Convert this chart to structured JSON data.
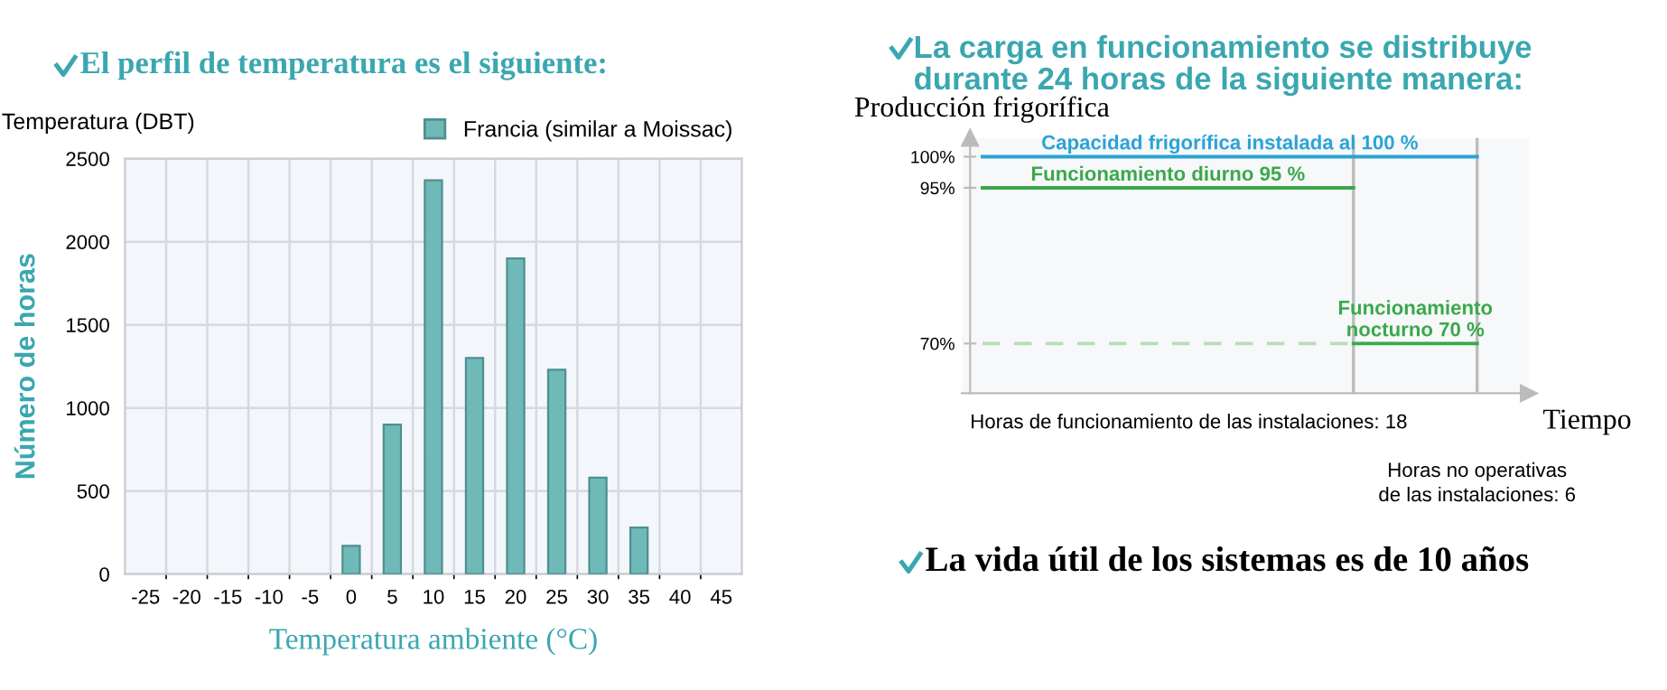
{
  "chart_data": [
    {
      "type": "bar",
      "title": "El perfil de temperatura es el siguiente:",
      "xlabel": "Temperatura ambiente (°C)",
      "ylabel": "Número de horas",
      "annotations": [
        "Temperatura (DBT)"
      ],
      "categories": [
        "-25",
        "-20",
        "-15",
        "-10",
        "-5",
        "0",
        "5",
        "10",
        "15",
        "20",
        "25",
        "30",
        "35",
        "40",
        "45"
      ],
      "series": [
        {
          "name": "Francia (similar a Moissac)",
          "color": "#70b9b9",
          "values": [
            null,
            null,
            null,
            null,
            null,
            170,
            900,
            2370,
            1300,
            1900,
            1230,
            580,
            280,
            null,
            null
          ]
        }
      ],
      "ylim": [
        0,
        2500
      ],
      "yticks": [
        0,
        500,
        1000,
        1500,
        2000,
        2500
      ],
      "grid": true,
      "legend": "top right"
    },
    {
      "type": "line",
      "title": "La carga en funcionamiento se distribuye\ndurante 24 horas de la siguiente manera:",
      "xlabel": "Tiempo",
      "ylabel": "Producción frigorífica",
      "annotations": [
        "Horas de funcionamiento de las instalaciones: 18",
        "Horas no operativas\nde las instalaciones: 6",
        "La vida útil de los sistemas es de 10 años"
      ],
      "categories": [
        null,
        null,
        null,
        null,
        null,
        null,
        null,
        null,
        null,
        null,
        null,
        null,
        null,
        null,
        null,
        null,
        null,
        null,
        null,
        null,
        null,
        null,
        null,
        null,
        null
      ],
      "series": [
        {
          "name": "Capacidad frigorífica instalada al 100 %",
          "color": "#2aa3d6",
          "values": [
            100,
            100,
            100,
            100,
            100,
            100,
            100,
            100,
            100,
            100,
            100,
            100,
            100,
            100,
            100,
            100,
            100,
            100,
            100,
            100,
            100,
            100,
            100,
            100,
            100
          ]
        },
        {
          "name": "Funcionamiento diurno 95 %",
          "color": "#3aa84a",
          "values": [
            95,
            95,
            95,
            95,
            95,
            95,
            95,
            95,
            95,
            95,
            95,
            95,
            95,
            95,
            95,
            95,
            95,
            95,
            95,
            null,
            null,
            null,
            null,
            null,
            null
          ]
        },
        {
          "name": "Funcionamiento\nnocturno 70 %",
          "color": "#3aa84a",
          "values": [
            null,
            null,
            null,
            null,
            null,
            null,
            null,
            null,
            null,
            null,
            null,
            null,
            null,
            null,
            null,
            null,
            null,
            null,
            70,
            70,
            70,
            70,
            70,
            70,
            70
          ]
        },
        {
          "color": "#b9dcb9",
          "values": [
            70,
            70,
            70,
            70,
            70,
            70,
            70,
            70,
            70,
            70,
            70,
            70,
            70,
            70,
            70,
            70,
            70,
            70,
            70,
            null,
            null,
            null,
            null,
            null,
            null
          ],
          "line_style": "dashed"
        }
      ],
      "ylim": [
        62,
        103
      ],
      "yticks": [
        {
          "value": 70,
          "label": "70%"
        },
        {
          "value": 95,
          "label": "95%"
        },
        {
          "value": 100,
          "label": "100%"
        }
      ],
      "tick_labels": "y"
    }
  ]
}
